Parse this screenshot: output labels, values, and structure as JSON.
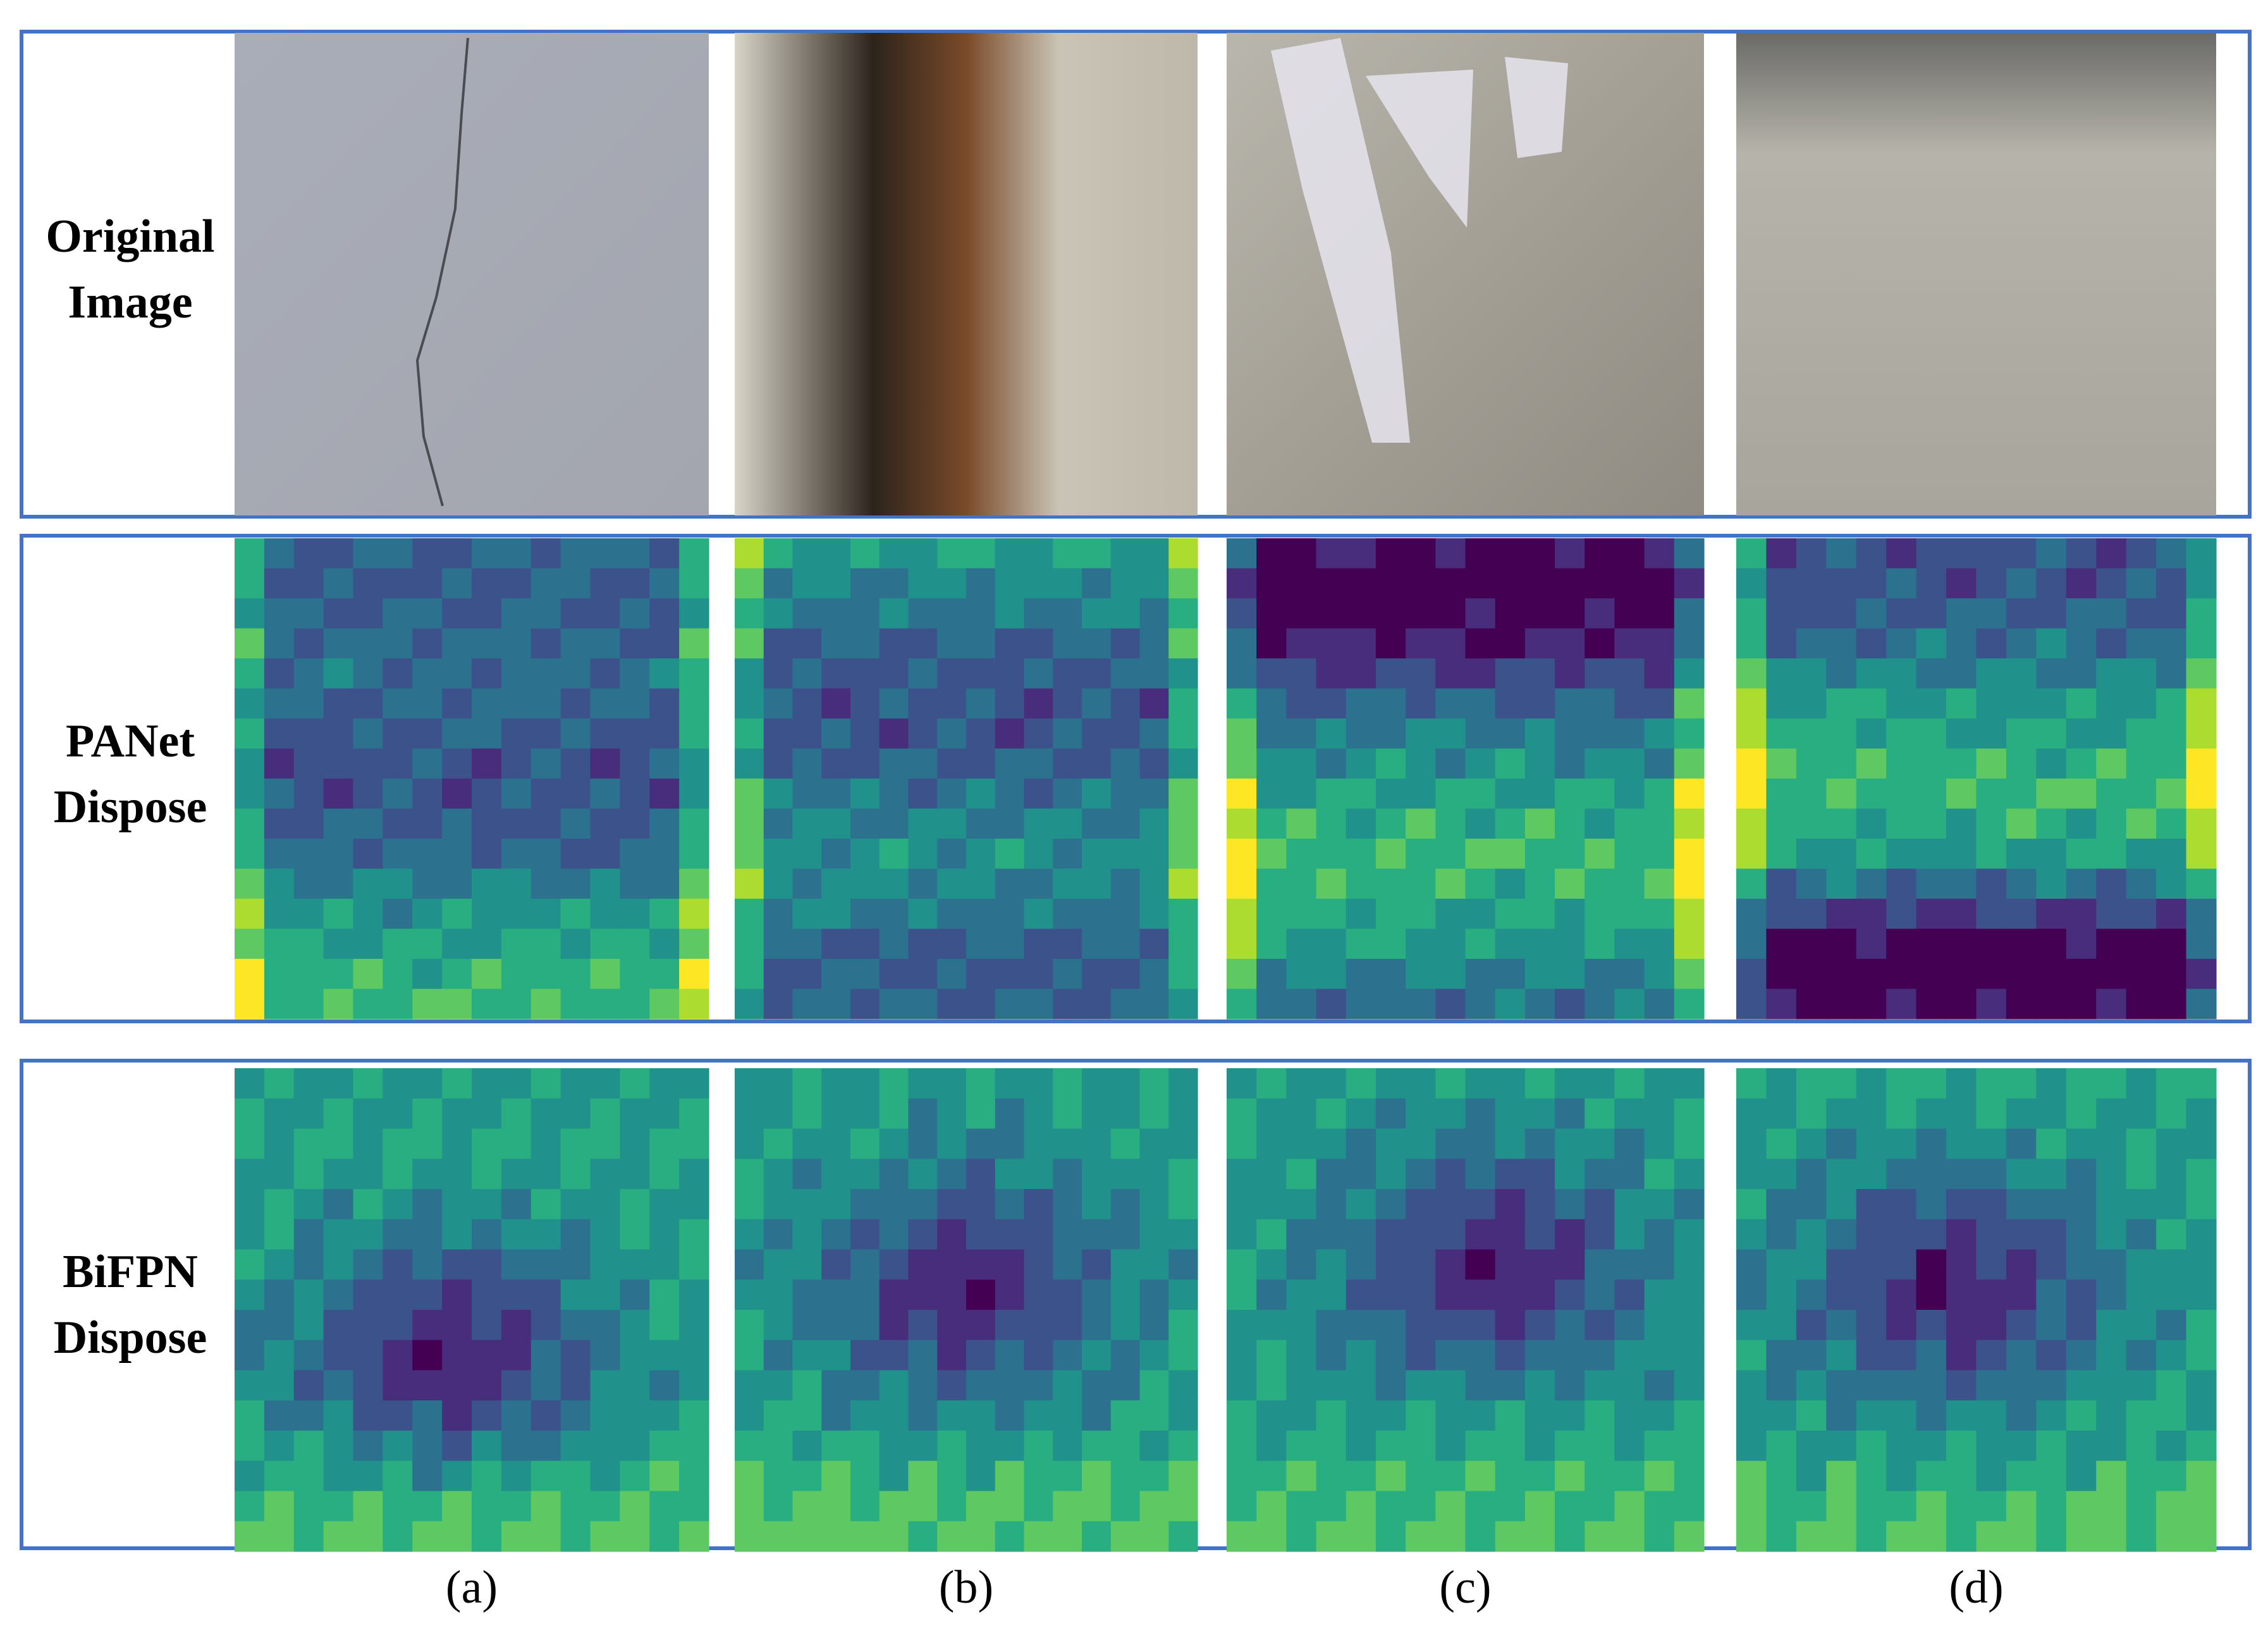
{
  "rows": [
    {
      "label_lines": [
        "Original",
        "Image"
      ]
    },
    {
      "label_lines": [
        "PANet",
        "Dispose"
      ]
    },
    {
      "label_lines": [
        "BiFPN",
        "Dispose"
      ]
    }
  ],
  "columns": [
    "(a)",
    "(b)",
    "(c)",
    "(d)"
  ]
}
